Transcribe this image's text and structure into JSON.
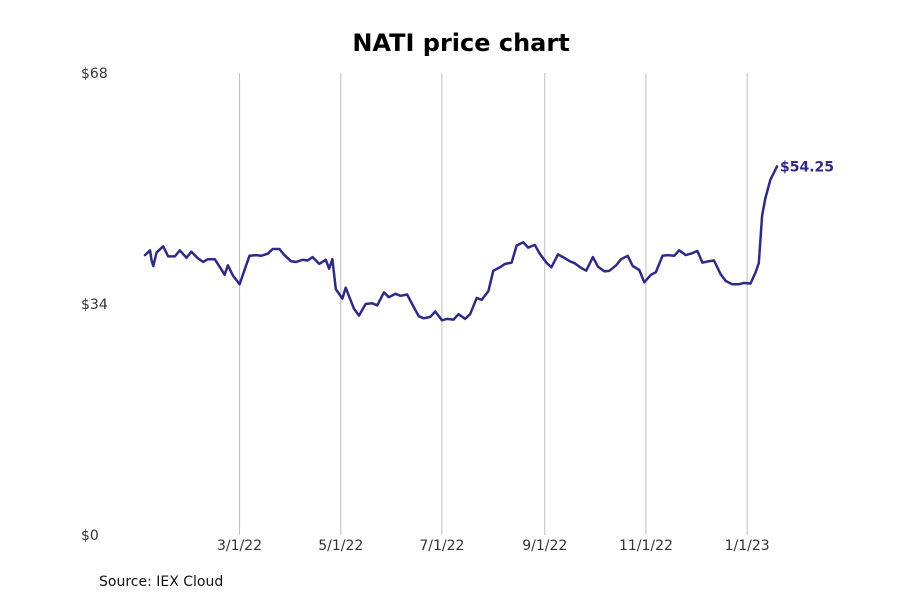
{
  "chart_data": {
    "type": "line",
    "title": "NATI price chart",
    "xlabel": "",
    "ylabel": "",
    "y_ticks": [
      {
        "value": 68,
        "label": "$68"
      },
      {
        "value": 34,
        "label": "$34"
      },
      {
        "value": 0,
        "label": "$0"
      }
    ],
    "ylim": [
      0,
      68
    ],
    "x_ticks": [
      {
        "date": "2022-03-01",
        "label": "3/1/22"
      },
      {
        "date": "2022-05-01",
        "label": "5/1/22"
      },
      {
        "date": "2022-07-01",
        "label": "7/1/22"
      },
      {
        "date": "2022-09-01",
        "label": "9/1/22"
      },
      {
        "date": "2022-11-01",
        "label": "11/1/22"
      },
      {
        "date": "2023-01-01",
        "label": "1/1/23"
      }
    ],
    "xlim": [
      "2022-01-03",
      "2023-01-19"
    ],
    "grid": "vertical",
    "series": [
      {
        "color": "#2e2a86",
        "end_label": "$54.25",
        "points": [
          [
            "2022-01-03",
            41.2
          ],
          [
            "2022-01-06",
            41.9
          ],
          [
            "2022-01-07",
            40.4
          ],
          [
            "2022-01-08",
            39.6
          ],
          [
            "2022-01-10",
            41.6
          ],
          [
            "2022-01-14",
            42.5
          ],
          [
            "2022-01-17",
            41.0
          ],
          [
            "2022-01-21",
            41.0
          ],
          [
            "2022-01-24",
            41.9
          ],
          [
            "2022-01-28",
            40.8
          ],
          [
            "2022-01-31",
            41.7
          ],
          [
            "2022-02-04",
            40.7
          ],
          [
            "2022-02-07",
            40.2
          ],
          [
            "2022-02-10",
            40.6
          ],
          [
            "2022-02-14",
            40.6
          ],
          [
            "2022-02-18",
            39.1
          ],
          [
            "2022-02-20",
            38.3
          ],
          [
            "2022-02-22",
            39.7
          ],
          [
            "2022-02-25",
            38.2
          ],
          [
            "2022-03-01",
            36.9
          ],
          [
            "2022-03-04",
            39.0
          ],
          [
            "2022-03-07",
            41.1
          ],
          [
            "2022-03-11",
            41.2
          ],
          [
            "2022-03-14",
            41.1
          ],
          [
            "2022-03-18",
            41.4
          ],
          [
            "2022-03-21",
            42.1
          ],
          [
            "2022-03-25",
            42.1
          ],
          [
            "2022-03-28",
            41.2
          ],
          [
            "2022-04-01",
            40.3
          ],
          [
            "2022-04-04",
            40.2
          ],
          [
            "2022-04-08",
            40.5
          ],
          [
            "2022-04-11",
            40.4
          ],
          [
            "2022-04-14",
            40.9
          ],
          [
            "2022-04-18",
            39.9
          ],
          [
            "2022-04-22",
            40.5
          ],
          [
            "2022-04-24",
            39.2
          ],
          [
            "2022-04-26",
            40.6
          ],
          [
            "2022-04-28",
            36.2
          ],
          [
            "2022-05-02",
            34.8
          ],
          [
            "2022-05-04",
            36.4
          ],
          [
            "2022-05-09",
            33.3
          ],
          [
            "2022-05-12",
            32.3
          ],
          [
            "2022-05-16",
            34.0
          ],
          [
            "2022-05-20",
            34.1
          ],
          [
            "2022-05-23",
            33.8
          ],
          [
            "2022-05-27",
            35.7
          ],
          [
            "2022-05-30",
            35.0
          ],
          [
            "2022-06-03",
            35.5
          ],
          [
            "2022-06-06",
            35.2
          ],
          [
            "2022-06-10",
            35.4
          ],
          [
            "2022-06-13",
            34.0
          ],
          [
            "2022-06-17",
            32.2
          ],
          [
            "2022-06-20",
            31.9
          ],
          [
            "2022-06-24",
            32.1
          ],
          [
            "2022-06-27",
            32.9
          ],
          [
            "2022-07-01",
            31.6
          ],
          [
            "2022-07-04",
            31.8
          ],
          [
            "2022-07-08",
            31.7
          ],
          [
            "2022-07-11",
            32.5
          ],
          [
            "2022-07-15",
            31.8
          ],
          [
            "2022-07-18",
            32.5
          ],
          [
            "2022-07-22",
            34.9
          ],
          [
            "2022-07-25",
            34.6
          ],
          [
            "2022-07-29",
            35.9
          ],
          [
            "2022-08-01",
            38.9
          ],
          [
            "2022-08-05",
            39.4
          ],
          [
            "2022-08-08",
            39.9
          ],
          [
            "2022-08-12",
            40.1
          ],
          [
            "2022-08-15",
            42.6
          ],
          [
            "2022-08-19",
            43.1
          ],
          [
            "2022-08-22",
            42.3
          ],
          [
            "2022-08-26",
            42.7
          ],
          [
            "2022-08-29",
            41.4
          ],
          [
            "2022-09-02",
            40.1
          ],
          [
            "2022-09-05",
            39.4
          ],
          [
            "2022-09-09",
            41.3
          ],
          [
            "2022-09-12",
            40.9
          ],
          [
            "2022-09-16",
            40.3
          ],
          [
            "2022-09-19",
            40.0
          ],
          [
            "2022-09-23",
            39.3
          ],
          [
            "2022-09-26",
            38.9
          ],
          [
            "2022-09-30",
            40.9
          ],
          [
            "2022-10-03",
            39.5
          ],
          [
            "2022-10-07",
            38.8
          ],
          [
            "2022-10-10",
            38.9
          ],
          [
            "2022-10-14",
            39.7
          ],
          [
            "2022-10-17",
            40.6
          ],
          [
            "2022-10-21",
            41.1
          ],
          [
            "2022-10-24",
            39.6
          ],
          [
            "2022-10-28",
            39.0
          ],
          [
            "2022-10-31",
            37.2
          ],
          [
            "2022-11-04",
            38.3
          ],
          [
            "2022-11-07",
            38.7
          ],
          [
            "2022-11-11",
            41.1
          ],
          [
            "2022-11-14",
            41.2
          ],
          [
            "2022-11-18",
            41.1
          ],
          [
            "2022-11-21",
            41.9
          ],
          [
            "2022-11-25",
            41.2
          ],
          [
            "2022-11-28",
            41.4
          ],
          [
            "2022-12-02",
            41.8
          ],
          [
            "2022-12-05",
            40.1
          ],
          [
            "2022-12-09",
            40.3
          ],
          [
            "2022-12-12",
            40.4
          ],
          [
            "2022-12-16",
            38.4
          ],
          [
            "2022-12-19",
            37.4
          ],
          [
            "2022-12-23",
            36.9
          ],
          [
            "2022-12-27",
            36.9
          ],
          [
            "2022-12-30",
            37.1
          ],
          [
            "2023-01-03",
            37.0
          ],
          [
            "2023-01-06",
            38.6
          ],
          [
            "2023-01-08",
            40.0
          ],
          [
            "2023-01-10",
            47.0
          ],
          [
            "2023-01-12",
            49.6
          ],
          [
            "2023-01-15",
            52.3
          ],
          [
            "2023-01-19",
            54.25
          ]
        ]
      }
    ]
  },
  "source": "Source: IEX Cloud"
}
